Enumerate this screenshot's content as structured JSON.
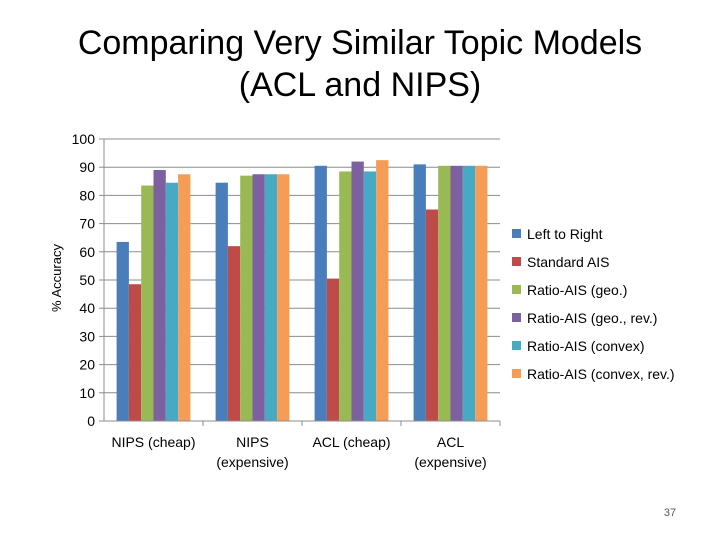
{
  "slide": {
    "title": "Comparing Very Similar Topic Models\n(ACL and NIPS)",
    "page_number": "37"
  },
  "chart_data": {
    "type": "bar",
    "title": "",
    "xlabel": "",
    "ylabel": "% Accuracy",
    "ylim": [
      0,
      100
    ],
    "yticks": [
      0,
      10,
      20,
      30,
      40,
      50,
      60,
      70,
      80,
      90,
      100
    ],
    "grid": true,
    "legend_position": "right",
    "categories": [
      [
        "NIPS (cheap)"
      ],
      [
        "NIPS",
        "(expensive)"
      ],
      [
        "ACL (cheap)"
      ],
      [
        "ACL",
        "(expensive)"
      ]
    ],
    "series": [
      {
        "name": "Left to Right",
        "color": "#4a7ebb",
        "values": [
          63.5,
          84.5,
          90.5,
          91
        ]
      },
      {
        "name": "Standard AIS",
        "color": "#be4b48",
        "values": [
          48.5,
          62,
          50.5,
          75
        ]
      },
      {
        "name": "Ratio-AIS (geo.)",
        "color": "#98b954",
        "values": [
          83.5,
          87,
          88.5,
          90.5
        ]
      },
      {
        "name": "Ratio-AIS (geo., rev.)",
        "color": "#7d60a0",
        "values": [
          89,
          87.5,
          92,
          90.5
        ]
      },
      {
        "name": "Ratio-AIS (convex)",
        "color": "#46aac5",
        "values": [
          84.5,
          87.5,
          88.5,
          90.5
        ]
      },
      {
        "name": "Ratio-AIS (convex, rev.)",
        "color": "#f59d56",
        "values": [
          87.5,
          87.5,
          92.5,
          90.5
        ]
      }
    ]
  }
}
